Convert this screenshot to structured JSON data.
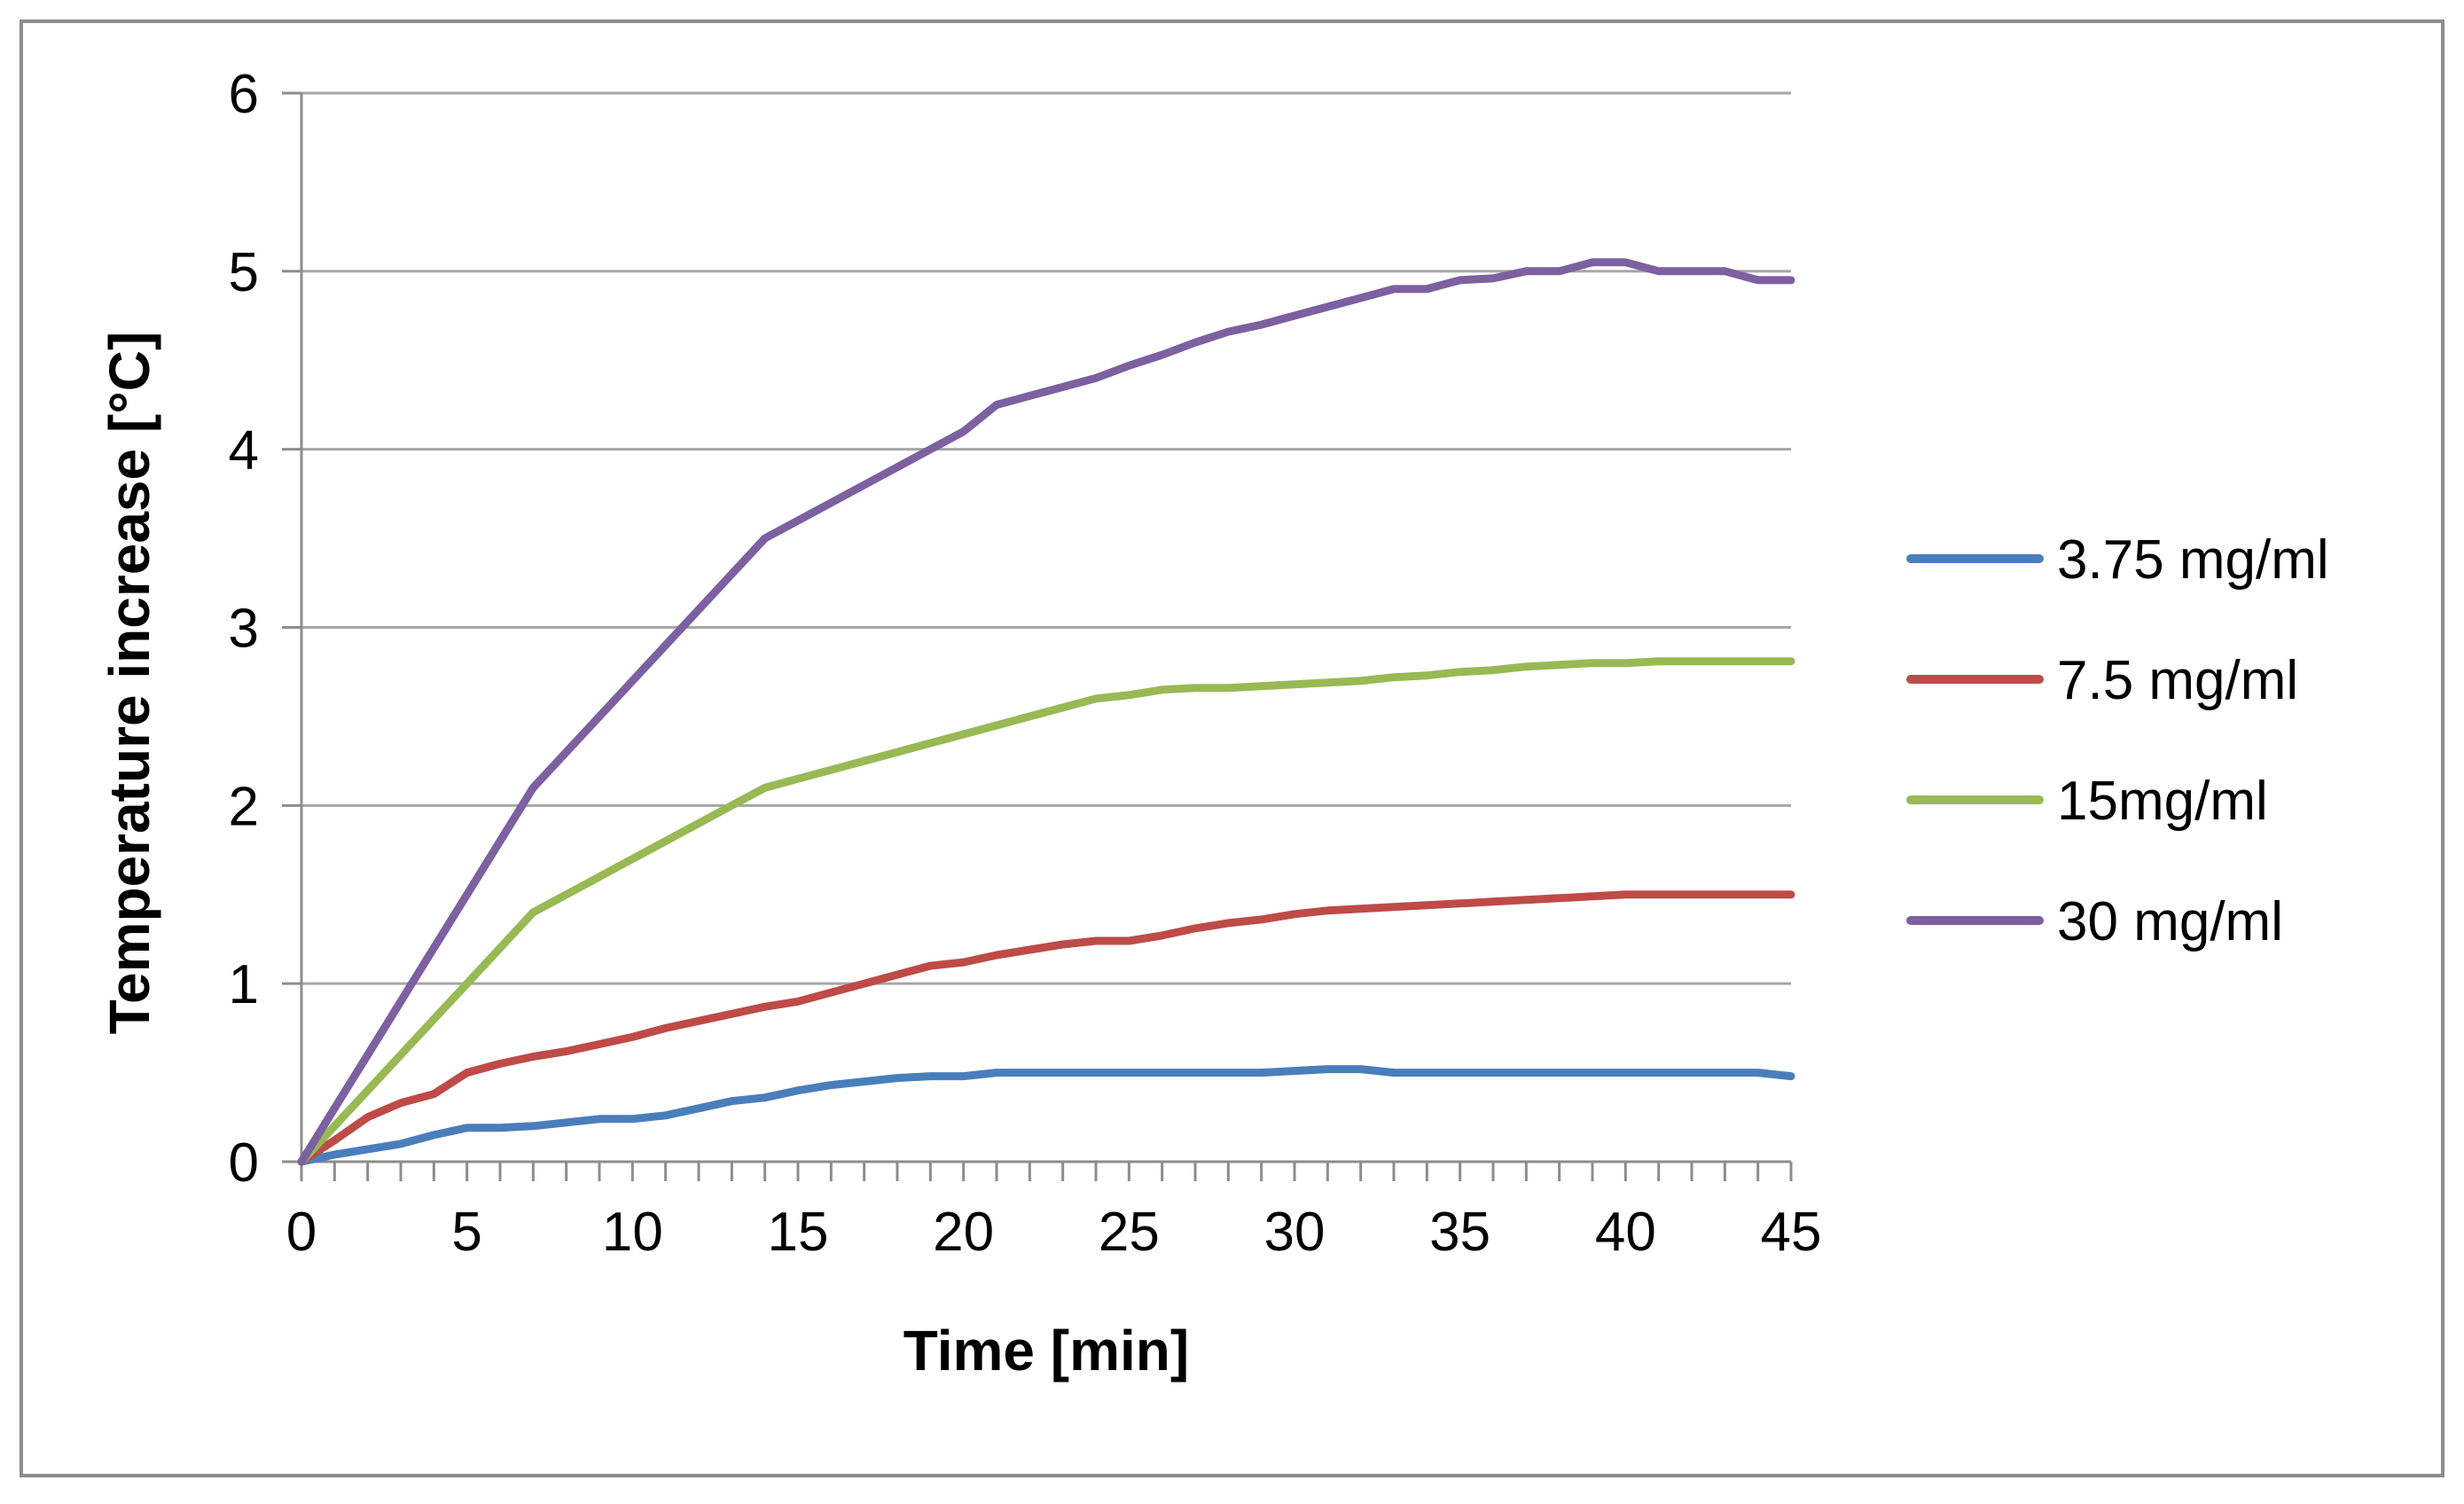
{
  "chart_data": {
    "type": "line",
    "title": "",
    "xlabel": "Time [min]",
    "ylabel": "Temperature increase [°C]",
    "xlim": [
      0,
      45
    ],
    "ylim": [
      0,
      6
    ],
    "x_ticks": [
      "0",
      "5",
      "10",
      "15",
      "20",
      "25",
      "30",
      "35",
      "40",
      "45"
    ],
    "y_ticks": [
      "0",
      "1",
      "2",
      "3",
      "4",
      "5",
      "6"
    ],
    "grid": true,
    "legend_position": "right",
    "x": [
      0,
      1,
      2,
      3,
      4,
      5,
      6,
      7,
      8,
      9,
      10,
      11,
      12,
      13,
      14,
      15,
      16,
      17,
      18,
      19,
      20,
      21,
      22,
      23,
      24,
      25,
      26,
      27,
      28,
      29,
      30,
      31,
      32,
      33,
      34,
      35,
      36,
      37,
      38,
      39,
      40,
      41,
      42,
      43,
      44,
      45
    ],
    "series": [
      {
        "name": "3.75 mg/ml",
        "color": "#4a7ebb",
        "values": [
          0,
          0.04,
          0.07,
          0.1,
          0.15,
          0.19,
          0.19,
          0.2,
          0.22,
          0.24,
          0.24,
          0.26,
          0.3,
          0.34,
          0.36,
          0.4,
          0.43,
          0.45,
          0.47,
          0.48,
          0.48,
          0.5,
          0.5,
          0.5,
          0.5,
          0.5,
          0.5,
          0.5,
          0.5,
          0.5,
          0.51,
          0.52,
          0.52,
          0.5,
          0.5,
          0.5,
          0.5,
          0.5,
          0.5,
          0.5,
          0.5,
          0.5,
          0.5,
          0.5,
          0.5,
          0.48
        ]
      },
      {
        "name": "7.5 mg/ml",
        "color": "#be4b48",
        "values": [
          0,
          0.12,
          0.25,
          0.33,
          0.38,
          0.5,
          0.55,
          0.59,
          0.62,
          0.66,
          0.7,
          0.75,
          0.79,
          0.83,
          0.87,
          0.9,
          0.95,
          1.0,
          1.05,
          1.1,
          1.12,
          1.16,
          1.19,
          1.22,
          1.24,
          1.24,
          1.27,
          1.31,
          1.34,
          1.36,
          1.39,
          1.41,
          1.42,
          1.43,
          1.44,
          1.45,
          1.46,
          1.47,
          1.48,
          1.49,
          1.5,
          1.5,
          1.5,
          1.5,
          1.5,
          1.5
        ]
      },
      {
        "name": "15mg/ml",
        "color": "#98b954",
        "values": [
          0,
          0.2,
          0.4,
          0.6,
          0.8,
          1.0,
          1.2,
          1.4,
          1.5,
          1.6,
          1.7,
          1.8,
          1.9,
          2.0,
          2.1,
          2.15,
          2.2,
          2.25,
          2.3,
          2.35,
          2.4,
          2.45,
          2.5,
          2.55,
          2.6,
          2.62,
          2.65,
          2.66,
          2.66,
          2.67,
          2.68,
          2.69,
          2.7,
          2.72,
          2.73,
          2.75,
          2.76,
          2.78,
          2.79,
          2.8,
          2.8,
          2.81,
          2.81,
          2.81,
          2.81,
          2.81
        ]
      },
      {
        "name": "30 mg/ml",
        "color": "#7d60a0",
        "values": [
          0,
          0.3,
          0.6,
          0.9,
          1.2,
          1.5,
          1.8,
          2.1,
          2.3,
          2.5,
          2.7,
          2.9,
          3.1,
          3.3,
          3.5,
          3.6,
          3.7,
          3.8,
          3.9,
          4.0,
          4.1,
          4.25,
          4.3,
          4.35,
          4.4,
          4.47,
          4.53,
          4.6,
          4.66,
          4.7,
          4.75,
          4.8,
          4.85,
          4.9,
          4.9,
          4.95,
          4.96,
          5.0,
          5.0,
          5.05,
          5.05,
          5.0,
          5.0,
          5.0,
          4.95,
          4.95
        ]
      }
    ]
  }
}
